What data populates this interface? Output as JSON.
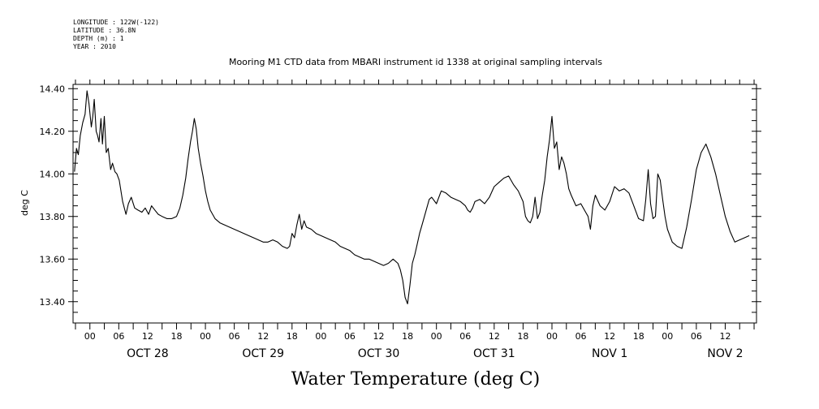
{
  "header": {
    "longitude": "LONGITUDE : 122W(-122)",
    "latitude": "LATITUDE : 36.8N",
    "depth": "DEPTH (m) : 1",
    "year": "YEAR : 2010"
  },
  "chart_data": {
    "type": "line",
    "title": "Mooring M1 CTD data from MBARI instrument id 1338 at original sampling intervals",
    "ylabel": "deg C",
    "xlabel": "Water Temperature (deg C)",
    "ylim": [
      13.3,
      14.42
    ],
    "xlim_hours": [
      -3.5,
      138.5
    ],
    "y_ticks": [
      "13.40",
      "13.60",
      "13.80",
      "14.00",
      "14.20",
      "14.40"
    ],
    "x_hour_labels": [
      "00",
      "06",
      "12",
      "18",
      "00",
      "06",
      "12",
      "18",
      "00",
      "06",
      "12",
      "18",
      "00",
      "06",
      "12",
      "18",
      "00",
      "06",
      "12",
      "18",
      "00",
      "06",
      "12"
    ],
    "day_labels": [
      "OCT 28",
      "OCT 29",
      "OCT 30",
      "OCT 31",
      "NOV 1",
      "NOV 2"
    ],
    "series": [
      {
        "x_hours_since_oct28_00": [
          -3.2,
          -2.8,
          -2.4,
          -2.0,
          -1.5,
          -1.0,
          -0.6,
          -0.2,
          0.3,
          0.6,
          0.9,
          1.3,
          1.6,
          1.9,
          2.3,
          2.6,
          3.0,
          3.4,
          3.8,
          4.3,
          4.7,
          5.2,
          5.6,
          6.1,
          6.8,
          7.5,
          8.0,
          8.6,
          9.3,
          10.0,
          10.8,
          11.5,
          12.2,
          12.8,
          13.5,
          14.2,
          15.0,
          16.0,
          17.0,
          18.0,
          18.7,
          19.3,
          19.9,
          20.4,
          20.9,
          21.3,
          21.7,
          22.1,
          22.5,
          23.0,
          23.5,
          24.0,
          24.5,
          25.0,
          26.0,
          27.0,
          28.0,
          29.0,
          30.0,
          31.0,
          32.0,
          33.0,
          34.0,
          35.0,
          36.0,
          37.0,
          38.0,
          39.0,
          40.0,
          41.0,
          41.5,
          42.0,
          42.5,
          43.0,
          43.5,
          44.0,
          44.5,
          45.0,
          46.0,
          47.0,
          48.0,
          49.0,
          50.0,
          51.0,
          52.0,
          53.0,
          54.0,
          55.0,
          56.0,
          57.0,
          58.0,
          59.0,
          60.0,
          61.0,
          62.0,
          63.0,
          64.0,
          64.5,
          65.0,
          65.5,
          66.0,
          66.5,
          67.0,
          67.5,
          68.0,
          68.5,
          69.0,
          69.5,
          70.0,
          70.5,
          71.0,
          72.0,
          73.0,
          74.0,
          75.0,
          76.0,
          77.0,
          78.0,
          78.5,
          79.0,
          79.5,
          80.0,
          81.0,
          82.0,
          83.0,
          84.0,
          85.0,
          86.0,
          87.0,
          88.0,
          89.0,
          90.0,
          90.5,
          91.0,
          91.5,
          92.0,
          92.5,
          93.0,
          93.5,
          94.0,
          94.5,
          95.0,
          95.5,
          96.0,
          96.5,
          97.0,
          97.5,
          98.0,
          98.5,
          99.0,
          99.5,
          100.0,
          101.0,
          102.0,
          103.0,
          103.5,
          104.0,
          104.5,
          105.0,
          106.0,
          107.0,
          108.0,
          109.0,
          110.0,
          111.0,
          112.0,
          113.0,
          114.0,
          115.0,
          115.5,
          116.0,
          116.5,
          117.0,
          117.5,
          118.0,
          118.5,
          119.0,
          119.5,
          120.0,
          121.0,
          122.0,
          123.0,
          124.0,
          125.0,
          126.0,
          127.0,
          128.0,
          129.0,
          130.0,
          131.0,
          132.0,
          133.0,
          134.0,
          135.0,
          136.0,
          137.0
        ],
        "y": [
          14.01,
          14.12,
          14.09,
          14.18,
          14.24,
          14.28,
          14.39,
          14.33,
          14.22,
          14.27,
          14.35,
          14.2,
          14.18,
          14.15,
          14.26,
          14.14,
          14.27,
          14.1,
          14.12,
          14.02,
          14.05,
          14.01,
          14.0,
          13.97,
          13.87,
          13.81,
          13.86,
          13.89,
          13.84,
          13.83,
          13.82,
          13.84,
          13.81,
          13.85,
          13.83,
          13.81,
          13.8,
          13.79,
          13.79,
          13.8,
          13.84,
          13.9,
          13.98,
          14.07,
          14.15,
          14.2,
          14.26,
          14.21,
          14.12,
          14.05,
          13.99,
          13.92,
          13.87,
          13.83,
          13.79,
          13.77,
          13.76,
          13.75,
          13.74,
          13.73,
          13.72,
          13.71,
          13.7,
          13.69,
          13.68,
          13.68,
          13.69,
          13.68,
          13.66,
          13.65,
          13.66,
          13.72,
          13.7,
          13.76,
          13.81,
          13.74,
          13.78,
          13.75,
          13.74,
          13.72,
          13.71,
          13.7,
          13.69,
          13.68,
          13.66,
          13.65,
          13.64,
          13.62,
          13.61,
          13.6,
          13.6,
          13.59,
          13.58,
          13.57,
          13.58,
          13.6,
          13.58,
          13.55,
          13.5,
          13.42,
          13.39,
          13.48,
          13.58,
          13.62,
          13.67,
          13.72,
          13.76,
          13.8,
          13.84,
          13.88,
          13.89,
          13.86,
          13.92,
          13.91,
          13.89,
          13.88,
          13.87,
          13.85,
          13.83,
          13.82,
          13.84,
          13.87,
          13.88,
          13.86,
          13.89,
          13.94,
          13.96,
          13.98,
          13.99,
          13.95,
          13.92,
          13.87,
          13.8,
          13.78,
          13.77,
          13.8,
          13.89,
          13.79,
          13.82,
          13.9,
          13.97,
          14.08,
          14.16,
          14.27,
          14.12,
          14.15,
          14.02,
          14.08,
          14.05,
          14.0,
          13.93,
          13.9,
          13.85,
          13.86,
          13.82,
          13.8,
          13.74,
          13.85,
          13.9,
          13.85,
          13.83,
          13.87,
          13.94,
          13.92,
          13.93,
          13.91,
          13.85,
          13.79,
          13.78,
          13.88,
          14.02,
          13.86,
          13.79,
          13.8,
          14.0,
          13.97,
          13.88,
          13.8,
          13.74,
          13.68,
          13.66,
          13.65,
          13.75,
          13.88,
          14.02,
          14.1,
          14.14,
          14.08,
          14.0,
          13.9,
          13.8,
          13.73,
          13.68,
          13.69,
          13.7,
          13.71,
          13.73,
          13.77,
          13.83
        ]
      }
    ]
  }
}
